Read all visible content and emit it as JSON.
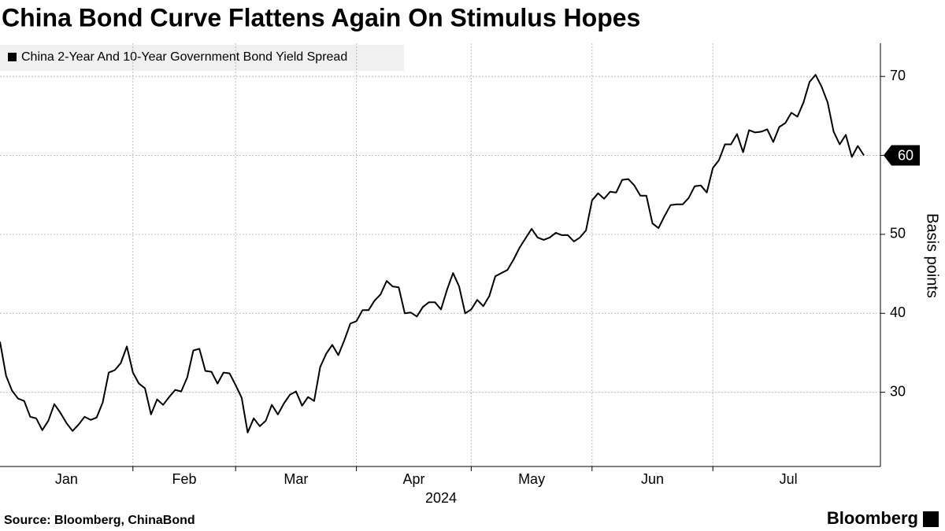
{
  "chart_data": {
    "type": "line",
    "title": "China Bond Curve Flattens Again On Stimulus Hopes",
    "ylabel": "Basis points",
    "x_year_label": "2024",
    "source": "Source: Bloomberg, ChinaBond",
    "brand": "Bloomberg",
    "categories": [
      "Jan",
      null,
      null,
      null,
      null,
      null,
      null,
      null,
      null,
      null,
      null,
      null,
      null,
      null,
      null,
      null,
      null,
      null,
      null,
      null,
      null,
      null,
      "Feb",
      null,
      null,
      null,
      null,
      null,
      null,
      null,
      null,
      null,
      null,
      null,
      null,
      null,
      null,
      null,
      null,
      "Mar",
      null,
      null,
      null,
      null,
      null,
      null,
      null,
      null,
      null,
      null,
      null,
      null,
      null,
      null,
      null,
      null,
      null,
      null,
      null,
      "Apr",
      null,
      null,
      null,
      null,
      null,
      null,
      null,
      null,
      null,
      null,
      null,
      null,
      null,
      null,
      null,
      null,
      null,
      null,
      "May",
      null,
      null,
      null,
      null,
      null,
      null,
      null,
      null,
      null,
      null,
      null,
      null,
      null,
      null,
      null,
      null,
      null,
      null,
      null,
      "Jun",
      null,
      null,
      null,
      null,
      null,
      null,
      null,
      null,
      null,
      null,
      null,
      null,
      null,
      null,
      null,
      null,
      null,
      null,
      null,
      "Jul",
      null,
      null,
      null,
      null,
      null,
      null,
      null,
      null,
      null,
      null,
      null,
      null,
      null,
      null,
      null,
      null,
      null,
      null,
      null,
      null,
      null,
      null,
      null,
      null,
      null
    ],
    "series": [
      {
        "name": "China 2-Year And 10-Year Government Bond Yield Spread",
        "color": "#000000",
        "values": [
          36.4,
          32.1,
          30.2,
          29.2,
          28.9,
          26.9,
          26.7,
          25.2,
          26.4,
          28.5,
          27.4,
          26.1,
          25.1,
          25.9,
          26.9,
          26.5,
          26.8,
          28.7,
          32.5,
          32.8,
          33.7,
          35.8,
          32.5,
          31.1,
          30.5,
          27.2,
          29.1,
          28.4,
          29.4,
          30.3,
          30.1,
          31.9,
          35.3,
          35.5,
          32.7,
          32.6,
          31.1,
          32.5,
          32.4,
          30.9,
          29.3,
          24.9,
          26.7,
          25.7,
          26.4,
          28.4,
          27.2,
          28.6,
          29.7,
          30.1,
          28.3,
          29.4,
          28.9,
          33.2,
          34.9,
          36.0,
          34.7,
          36.6,
          38.7,
          39.0,
          40.4,
          40.4,
          41.6,
          42.4,
          44.1,
          43.4,
          43.3,
          40.0,
          40.1,
          39.6,
          40.8,
          41.4,
          41.4,
          40.5,
          43.0,
          45.1,
          43.4,
          40.0,
          40.5,
          41.7,
          40.9,
          42.2,
          44.7,
          45.1,
          45.5,
          46.8,
          48.3,
          49.5,
          50.7,
          49.6,
          49.3,
          49.6,
          50.2,
          49.9,
          49.9,
          49.1,
          49.6,
          50.5,
          54.3,
          55.2,
          54.5,
          55.4,
          55.3,
          56.9,
          57.0,
          56.2,
          54.9,
          54.9,
          51.4,
          50.8,
          52.3,
          53.7,
          53.8,
          53.8,
          54.6,
          56.1,
          56.2,
          55.3,
          58.4,
          59.4,
          61.4,
          61.4,
          62.7,
          60.4,
          63.2,
          62.9,
          63.0,
          63.3,
          61.7,
          63.6,
          64.1,
          65.4,
          64.9,
          66.7,
          69.3,
          70.2,
          68.7,
          66.7,
          63.0,
          61.4,
          62.6,
          59.8,
          61.2,
          60
        ]
      }
    ],
    "ylim": [
      20.6,
      74.2
    ],
    "yticks": [
      30,
      40,
      50,
      60,
      70
    ],
    "grid": true
  }
}
